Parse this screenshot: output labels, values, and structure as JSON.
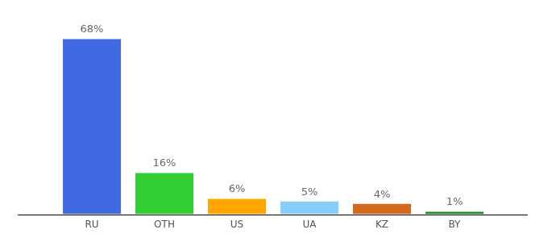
{
  "chart_data": {
    "type": "bar",
    "categories": [
      "RU",
      "OTH",
      "US",
      "UA",
      "KZ",
      "BY"
    ],
    "values": [
      68,
      16,
      6,
      5,
      4,
      1
    ],
    "value_labels": [
      "68%",
      "16%",
      "6%",
      "5%",
      "4%",
      "1%"
    ],
    "colors": [
      "#4169e1",
      "#32cd32",
      "#ffa500",
      "#87cefa",
      "#d2691e",
      "#228b22"
    ],
    "ylim": [
      0,
      70
    ],
    "grid": false,
    "data_labels": true,
    "tick_labels": "x"
  }
}
